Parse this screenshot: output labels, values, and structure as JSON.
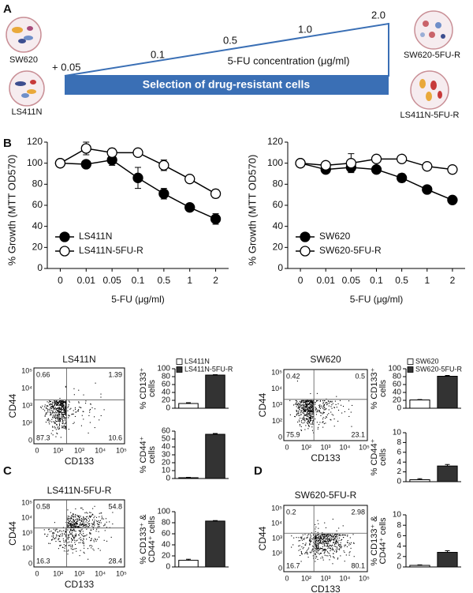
{
  "panel_labels": [
    "A",
    "B",
    "C",
    "D"
  ],
  "panel_a": {
    "cells": [
      "SW620",
      "LS411N",
      "SW620-5FU-R",
      "LS411N-5FU-R"
    ],
    "start": "+ 0.05",
    "concentrations": [
      "0.1",
      "0.5",
      "1.0",
      "2.0"
    ],
    "axis_label": "5-FU concentration (μg/ml)",
    "banner": "Selection of drug-resistant cells"
  },
  "chart_data": [
    {
      "type": "line",
      "ylabel": "% Growth (MTT OD570)",
      "xlabel": "5-FU (μg/ml)",
      "categories": [
        "0",
        "0.01",
        "0.05",
        "0.1",
        "0.5",
        "1",
        "2"
      ],
      "ylim": [
        0,
        120
      ],
      "yticks": [
        0,
        20,
        40,
        60,
        80,
        100,
        120
      ],
      "legend": "lower left",
      "series": [
        {
          "name": "LS411N",
          "color": "#000000",
          "values": [
            100,
            99,
            103,
            86,
            71,
            58,
            47
          ],
          "errors": [
            0,
            3,
            5,
            10,
            5,
            3,
            5
          ]
        },
        {
          "name": "LS411N-5FU-R",
          "color": "#ffffff",
          "values": [
            100,
            114,
            110,
            110,
            98,
            85,
            71
          ],
          "errors": [
            2,
            6,
            4,
            3,
            5,
            3,
            4
          ]
        }
      ]
    },
    {
      "type": "line",
      "ylabel": "% Growth (MTT OD570)",
      "xlabel": "5-FU (μg/ml)",
      "categories": [
        "0",
        "0.01",
        "0.05",
        "0.1",
        "0.5",
        "1",
        "2"
      ],
      "ylim": [
        0,
        120
      ],
      "yticks": [
        0,
        20,
        40,
        60,
        80,
        100,
        120
      ],
      "legend": "lower left",
      "series": [
        {
          "name": "SW620",
          "color": "#000000",
          "values": [
            100,
            94,
            96,
            94,
            86,
            75,
            65
          ],
          "errors": [
            0,
            3,
            4,
            3,
            4,
            2,
            3
          ]
        },
        {
          "name": "SW620-5FU-R",
          "color": "#ffffff",
          "values": [
            100,
            98,
            100,
            104,
            104,
            97,
            94
          ],
          "errors": [
            0,
            3,
            9,
            2,
            3,
            2,
            2
          ]
        }
      ]
    },
    {
      "type": "bar",
      "ylabel": [
        "% CD133⁺",
        "cells"
      ],
      "ylim": [
        0,
        100
      ],
      "yticks": [
        0,
        20,
        40,
        60,
        80,
        100
      ],
      "legend": "upper left",
      "series": [
        {
          "name": "LS411N",
          "color": "#ffffff",
          "values": [
            12
          ],
          "errors": [
            2
          ]
        },
        {
          "name": "LS411N-5FU-R",
          "color": "#333333",
          "values": [
            84
          ],
          "errors": [
            1
          ]
        }
      ]
    },
    {
      "type": "bar",
      "ylabel": [
        "% CD44⁺",
        "cells"
      ],
      "ylim": [
        0,
        60
      ],
      "yticks": [
        0,
        10,
        20,
        30,
        40,
        50,
        60
      ],
      "series": [
        {
          "color": "#ffffff",
          "values": [
            1
          ],
          "errors": [
            0.5
          ]
        },
        {
          "color": "#333333",
          "values": [
            56
          ],
          "errors": [
            1
          ]
        }
      ]
    },
    {
      "type": "bar",
      "ylabel": [
        "% CD133⁺ &",
        "CD44⁺ cells"
      ],
      "ylim": [
        0,
        100
      ],
      "yticks": [
        0,
        20,
        40,
        60,
        80,
        100
      ],
      "series": [
        {
          "color": "#ffffff",
          "values": [
            12
          ],
          "errors": [
            2
          ]
        },
        {
          "color": "#333333",
          "values": [
            83
          ],
          "errors": [
            1
          ]
        }
      ]
    },
    {
      "type": "bar",
      "ylabel": [
        "% CD133⁺",
        "cells"
      ],
      "ylim": [
        0,
        100
      ],
      "yticks": [
        0,
        20,
        40,
        60,
        80,
        100
      ],
      "legend": "upper left",
      "series": [
        {
          "name": "SW620",
          "color": "#ffffff",
          "values": [
            21
          ],
          "errors": [
            1
          ]
        },
        {
          "name": "SW620-5FU-R",
          "color": "#333333",
          "values": [
            81
          ],
          "errors": [
            2
          ]
        }
      ]
    },
    {
      "type": "bar",
      "ylabel": [
        "% CD44⁺",
        "cells"
      ],
      "ylim": [
        0,
        10
      ],
      "yticks": [
        0,
        2,
        4,
        6,
        8,
        10
      ],
      "series": [
        {
          "color": "#ffffff",
          "values": [
            0.4
          ],
          "errors": [
            0.2
          ]
        },
        {
          "color": "#333333",
          "values": [
            3.2
          ],
          "errors": [
            0.3
          ]
        }
      ]
    },
    {
      "type": "bar",
      "ylabel": [
        "% CD133⁺ &",
        "CD44⁺ cells"
      ],
      "ylim": [
        0,
        10
      ],
      "yticks": [
        0,
        2,
        4,
        6,
        8,
        10
      ],
      "series": [
        {
          "color": "#ffffff",
          "values": [
            0.3
          ],
          "errors": [
            0.1
          ]
        },
        {
          "color": "#333333",
          "values": [
            2.8
          ],
          "errors": [
            0.3
          ]
        }
      ]
    }
  ],
  "flow_plots": [
    {
      "title": "LS411N",
      "xlabel": "CD133",
      "ylabel": "CD44",
      "quadrants": [
        0.66,
        1.39,
        87.3,
        10.6
      ],
      "xticks": [
        "0",
        "10²",
        "10³",
        "10⁴",
        "10⁵"
      ],
      "yticks": [
        "0",
        "10²",
        "10³",
        "10⁴",
        "10⁵"
      ]
    },
    {
      "title": "LS411N-5FU-R",
      "xlabel": "CD133",
      "ylabel": "CD44",
      "quadrants": [
        0.58,
        54.8,
        16.3,
        28.4
      ],
      "xticks": [
        "0",
        "10²",
        "10³",
        "10⁴",
        "10⁵"
      ],
      "yticks": [
        "0",
        "10²",
        "10³",
        "10⁴",
        "10⁵"
      ]
    },
    {
      "title": "SW620",
      "xlabel": "CD133",
      "ylabel": "CD44",
      "quadrants": [
        0.42,
        0.5,
        75.9,
        23.1
      ],
      "xticks": [
        "0",
        "10²",
        "10³",
        "10⁴",
        "10⁵"
      ],
      "yticks": [
        "0",
        "10²",
        "10³",
        "10⁴",
        "10⁵"
      ]
    },
    {
      "title": "SW620-5FU-R",
      "xlabel": "CD133",
      "ylabel": "CD44",
      "quadrants": [
        0.2,
        2.98,
        16.7,
        80.1
      ],
      "xticks": [
        "0",
        "10²",
        "10³",
        "10⁴",
        "10⁵"
      ],
      "yticks": [
        "0",
        "10²",
        "10³",
        "10⁴",
        "10⁵"
      ]
    }
  ]
}
